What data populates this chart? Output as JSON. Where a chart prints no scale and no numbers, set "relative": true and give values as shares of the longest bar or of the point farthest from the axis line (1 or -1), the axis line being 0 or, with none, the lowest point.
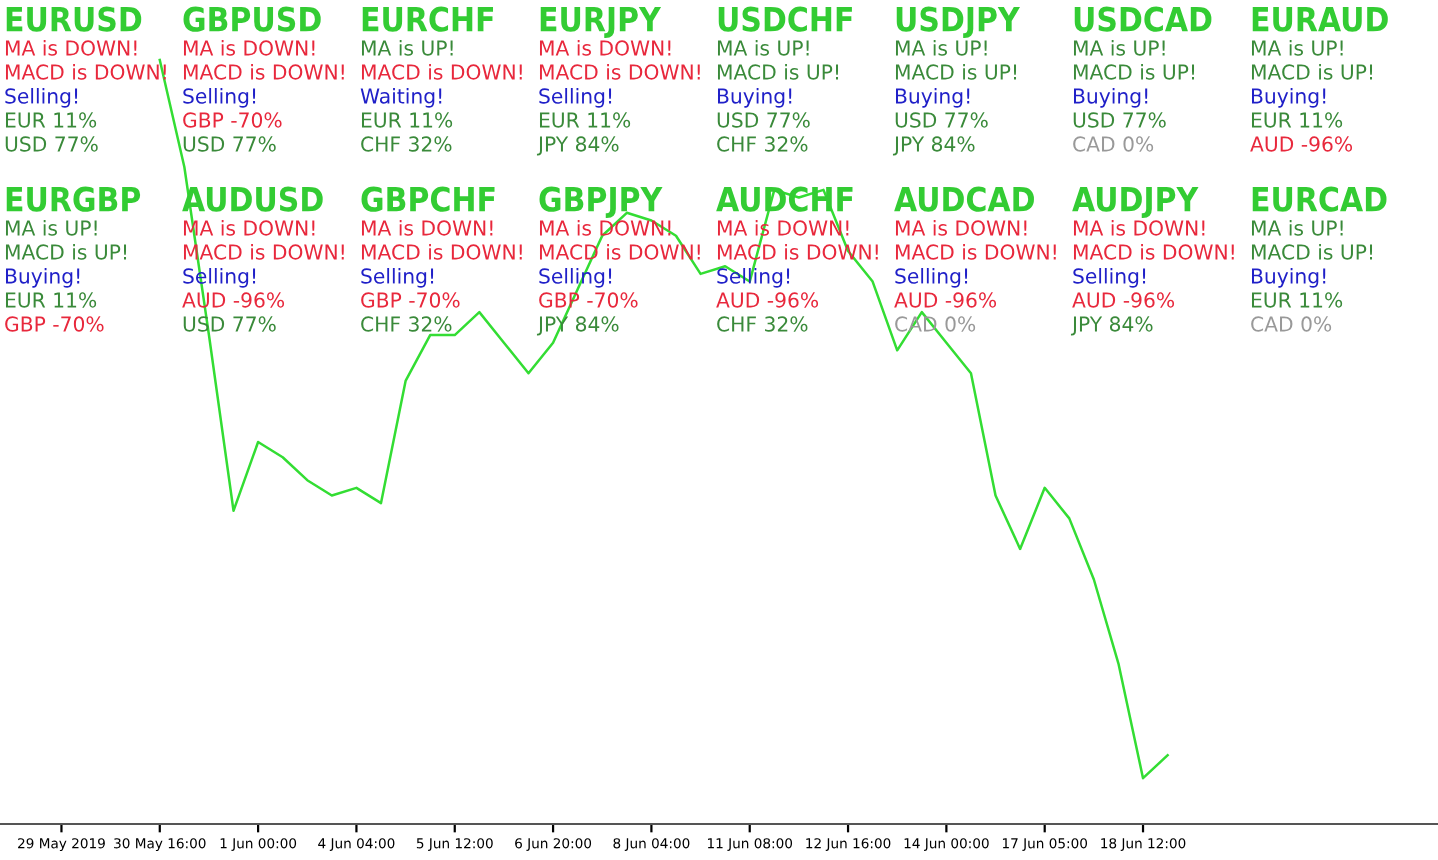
{
  "chart_data": {
    "type": "line",
    "relative": true,
    "grid": false,
    "legend": false,
    "marker": "none",
    "line_style": "solid",
    "categories": [
      "29 May 2019",
      null,
      null,
      null,
      "30 May 16:00",
      null,
      null,
      null,
      "1 Jun 00:00",
      null,
      null,
      null,
      "4 Jun 04:00",
      null,
      null,
      null,
      "5 Jun 12:00",
      null,
      null,
      null,
      "6 Jun 20:00",
      null,
      null,
      null,
      "8 Jun 04:00",
      null,
      null,
      null,
      "11 Jun 08:00",
      null,
      null,
      null,
      "12 Jun 16:00",
      null,
      null,
      null,
      "14 Jun 00:00",
      null,
      null,
      null,
      "17 Jun 05:00",
      null,
      null,
      null,
      "18 Jun 12:00",
      null
    ],
    "series": [
      {
        "color": "#33dd33",
        "values": [
          null,
          null,
          null,
          null,
          1.0,
          0.86,
          0.64,
          0.41,
          0.5,
          0.48,
          0.45,
          0.43,
          0.44,
          0.42,
          0.58,
          0.64,
          0.64,
          0.67,
          0.63,
          0.59,
          0.63,
          0.7,
          0.77,
          0.8,
          0.79,
          0.77,
          0.72,
          0.73,
          0.71,
          0.83,
          0.82,
          0.83,
          0.75,
          0.71,
          0.62,
          0.67,
          0.63,
          0.59,
          0.43,
          0.36,
          0.44,
          0.4,
          0.32,
          0.21,
          0.06,
          0.09
        ]
      }
    ],
    "annotations": [
      "EURUSD",
      "MA is DOWN!",
      "MACD is DOWN!",
      "Selling!",
      "EUR 11%",
      "USD 77%",
      "GBPUSD",
      "MA is DOWN!",
      "MACD is DOWN!",
      "Selling!",
      "GBP -70%",
      "USD 77%",
      "EURCHF",
      "MA is UP!",
      "MACD is DOWN!",
      "Waiting!",
      "EUR 11%",
      "CHF 32%",
      "EURJPY",
      "MA is DOWN!",
      "MACD is DOWN!",
      "Selling!",
      "EUR 11%",
      "JPY 84%",
      "USDCHF",
      "MA is UP!",
      "MACD is UP!",
      "Buying!",
      "USD 77%",
      "CHF 32%",
      "USDJPY",
      "MA is UP!",
      "MACD is UP!",
      "Buying!",
      "USD 77%",
      "JPY 84%",
      "USDCAD",
      "MA is UP!",
      "MACD is UP!",
      "Buying!",
      "USD 77%",
      "CAD 0%",
      "EURAUD",
      "MA is UP!",
      "MACD is UP!",
      "Buying!",
      "EUR 11%",
      "AUD -96%",
      "EURGBP",
      "MA is UP!",
      "MACD is UP!",
      "Buying!",
      "EUR 11%",
      "GBP -70%",
      "AUDUSD",
      "MA is DOWN!",
      "MACD is DOWN!",
      "Selling!",
      "AUD -96%",
      "USD 77%",
      "GBPCHF",
      "MA is DOWN!",
      "MACD is DOWN!",
      "Selling!",
      "GBP -70%",
      "CHF 32%",
      "GBPJPY",
      "MA is DOWN!",
      "MACD is DOWN!",
      "Selling!",
      "GBP -70%",
      "JPY 84%",
      "AUDCHF",
      "MA is DOWN!",
      "MACD is DOWN!",
      "Selling!",
      "AUD -96%",
      "CHF 32%",
      "AUDCAD",
      "MA is DOWN!",
      "MACD is DOWN!",
      "Selling!",
      "AUD -96%",
      "CAD 0%",
      "AUDJPY",
      "MA is DOWN!",
      "MACD is DOWN!",
      "Selling!",
      "AUD -96%",
      "JPY 84%",
      "EURCAD",
      "MA is UP!",
      "MACD is UP!",
      "Buying!",
      "EUR 11%",
      "CAD 0%"
    ]
  }
}
